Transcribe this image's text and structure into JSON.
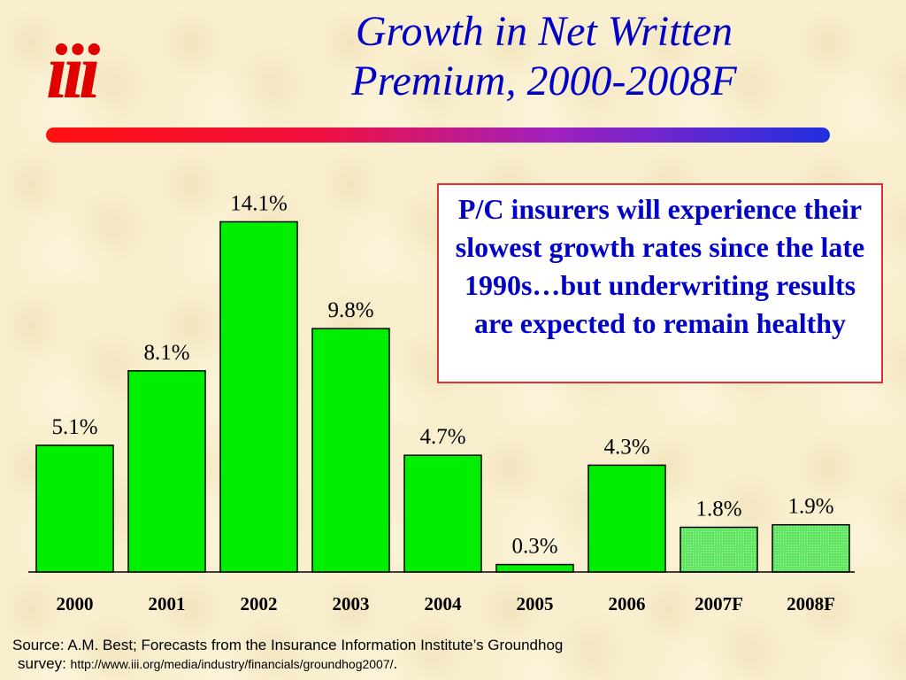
{
  "header": {
    "title_line1": "Growth in Net Written",
    "title_line2": "Premium, 2000-2008F",
    "logo_text": "iii",
    "accent_colors": [
      "#ff1010",
      "#a020c0",
      "#2030e0"
    ]
  },
  "callout": {
    "text": "P/C insurers will experience their slowest growth rates since the late 1990s…but underwriting results are expected to remain healthy"
  },
  "chart_data": {
    "type": "bar",
    "categories": [
      "2000",
      "2001",
      "2002",
      "2003",
      "2004",
      "2005",
      "2006",
      "2007F",
      "2008F"
    ],
    "values": [
      5.1,
      8.1,
      14.1,
      9.8,
      4.7,
      0.3,
      4.3,
      1.8,
      1.9
    ],
    "value_labels": [
      "5.1%",
      "8.1%",
      "14.1%",
      "9.8%",
      "4.7%",
      "0.3%",
      "4.3%",
      "1.8%",
      "1.9%"
    ],
    "forecast": [
      false,
      false,
      false,
      false,
      false,
      false,
      false,
      true,
      true
    ],
    "title": "",
    "xlabel": "",
    "ylabel": "",
    "ylim": [
      0,
      15
    ],
    "grid": false,
    "colors": {
      "actual": "#00ee00",
      "forecast": "#66ee66"
    }
  },
  "footer": {
    "source_line1": "Source:  A.M. Best; Forecasts from the Insurance Information Institute’s Groundhog",
    "source_prefix": "survey: ",
    "source_url": "http://www.iii.org/media/industry/financials/groundhog2007/",
    "source_suffix": "."
  }
}
